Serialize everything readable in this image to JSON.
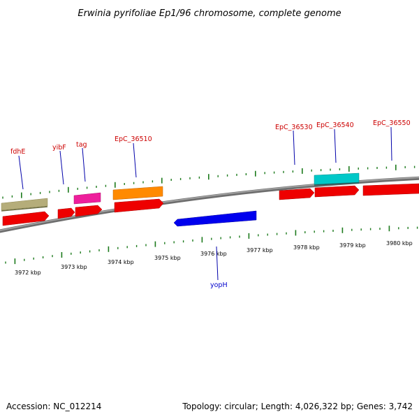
{
  "title": "Erwinia pyrifoliae Ep1/96 chromosome, complete genome",
  "footer": {
    "accession": "Accession: NC_012214",
    "summary": "Topology: circular; Length: 4,026,322 bp; Genes: 3,742"
  },
  "colors": {
    "backbone": "#8a8a8a",
    "tick": "#1c7a1c",
    "label_forward": "#cc0000",
    "label_reverse": "#0000cc"
  },
  "scale_labels": [
    "3972 kbp",
    "3973 kbp",
    "3974 kbp",
    "3975 kbp",
    "3976 kbp",
    "3977 kbp",
    "3978 kbp",
    "3979 kbp",
    "3980 kbp"
  ],
  "gene_labels": [
    {
      "text": "fdhE",
      "color": "#cc0000"
    },
    {
      "text": "yibF",
      "color": "#cc0000"
    },
    {
      "text": "tag",
      "color": "#cc0000"
    },
    {
      "text": "EpC_36510",
      "color": "#cc0000"
    },
    {
      "text": "EpC_36530",
      "color": "#cc0000"
    },
    {
      "text": "EpC_36540",
      "color": "#cc0000"
    },
    {
      "text": "EpC_36550",
      "color": "#cc0000"
    },
    {
      "text": "yopH",
      "color": "#0000cc"
    }
  ],
  "features": [
    {
      "name": "fdhE-track",
      "color": "#b5ad7a"
    },
    {
      "name": "fdhE-gene",
      "color": "#ee0000"
    },
    {
      "name": "yibF-gene",
      "color": "#ee0000"
    },
    {
      "name": "tag-track",
      "color": "#ee1e9c"
    },
    {
      "name": "tag-gene",
      "color": "#ee0000"
    },
    {
      "name": "EpC_36510-track",
      "color": "#ff8a00"
    },
    {
      "name": "EpC_36510-gene",
      "color": "#ee0000"
    },
    {
      "name": "yopH-gene",
      "color": "#0000ee"
    },
    {
      "name": "EpC_36530-gene",
      "color": "#ee0000"
    },
    {
      "name": "EpC_36540-track",
      "color": "#00c8c8"
    },
    {
      "name": "EpC_36540-gene",
      "color": "#ee0000"
    },
    {
      "name": "EpC_36550-gene",
      "color": "#ee0000"
    }
  ]
}
